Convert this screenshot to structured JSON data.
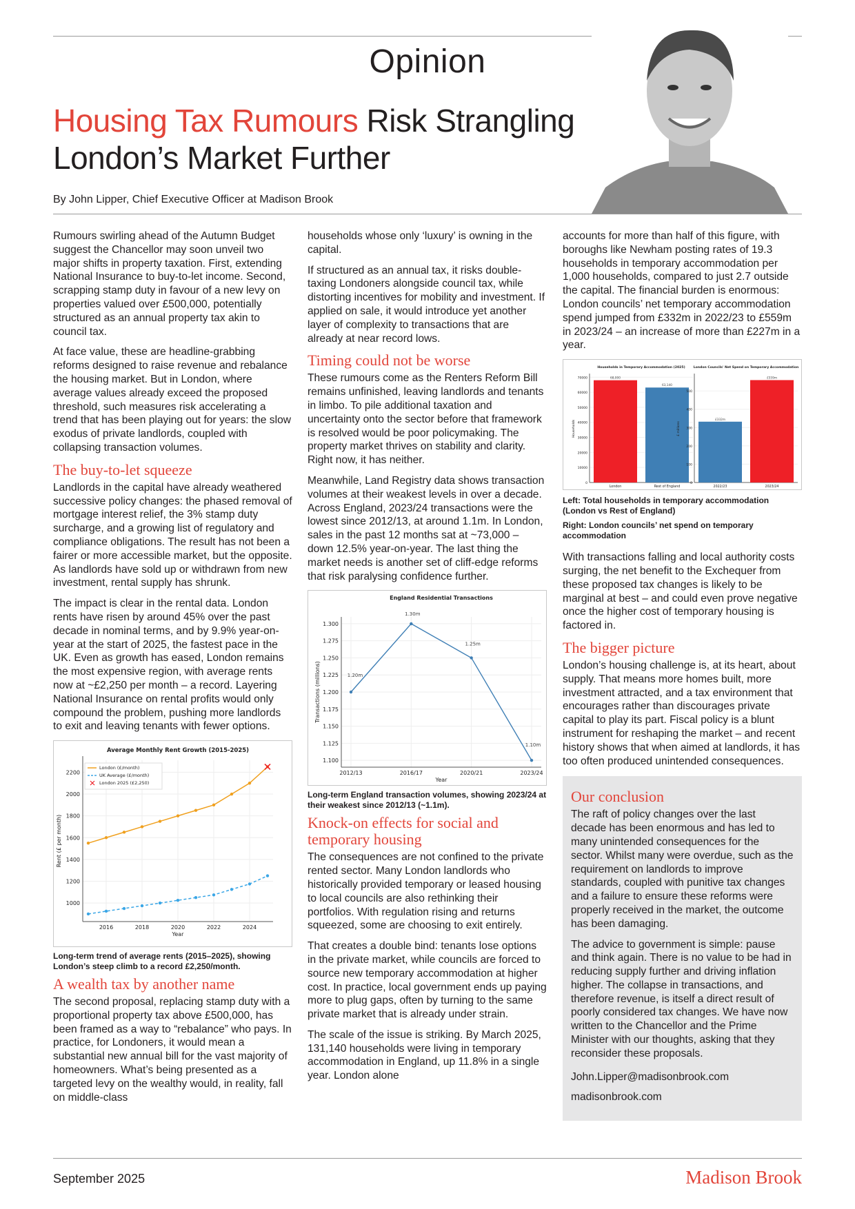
{
  "header": {
    "section": "Opinion",
    "headline_accent": "Housing Tax Rumours",
    "headline_rest": " Risk Strangling London’s Market Further",
    "byline": "By John Lipper, Chief Executive Officer at Madison Brook"
  },
  "col1": {
    "p1": "Rumours swirling ahead of the Autumn Budget suggest the Chancellor may soon unveil two major shifts in property taxation. First, extending National Insurance to buy-to-let income. Second, scrapping stamp duty in favour of a new levy on properties valued over £500,000, potentially structured as an annual property tax akin to council tax.",
    "p2": "At face value, these are headline-grabbing reforms designed to raise revenue and rebalance the housing market. But in London, where average values already exceed the proposed threshold, such measures risk accelerating a trend that has been playing out for years: the slow exodus of private landlords, coupled with collapsing transaction volumes.",
    "h1": "The buy-to-let squeeze",
    "p3": "Landlords in the capital have already weathered successive policy changes: the phased removal of mortgage interest relief, the 3% stamp duty surcharge, and a growing list of regulatory and compliance obligations. The result has not been a fairer or more accessible market, but the opposite. As landlords have sold up or withdrawn from new investment, rental supply has shrunk.",
    "p4": "The impact is clear in the rental data. London rents have risen by around 45% over the past decade in nominal terms, and by 9.9% year-on-year at the start of 2025, the fastest pace in the UK. Even as growth has eased, London remains the most expensive region, with average rents now at ~£2,250 per month – a record. Layering National Insurance on rental profits would only compound the problem, pushing more landlords to exit and leaving tenants with fewer options.",
    "caption": "Long-term trend of average rents (2015–2025), showing London’s steep climb to a record £2,250/month.",
    "h2": "A wealth tax by another name",
    "p5": "The second proposal, replacing stamp duty with a proportional property tax above £500,000, has been framed as a way to “rebalance” who pays. In practice, for Londoners, it would mean a substantial new annual bill for the vast majority of homeowners. What’s being presented as a targeted levy on the wealthy would, in reality, fall on middle-class"
  },
  "col2": {
    "p1": "households whose only ‘luxury’ is owning in the capital.",
    "p2": "If structured as an annual tax, it risks double-taxing Londoners alongside council tax, while distorting incentives for mobility and investment. If applied on sale, it would introduce yet another layer of complexity to transactions that are already at near record lows.",
    "h1": "Timing could not be worse",
    "p3": "These rumours come as the Renters Reform Bill remains unfinished, leaving landlords and tenants in limbo. To pile additional taxation and uncertainty onto the sector before that framework is resolved would be poor policymaking. The property market thrives on stability and clarity. Right now, it has neither.",
    "p4": "Meanwhile, Land Registry data shows transaction volumes at their weakest levels in over a decade. Across England, 2023/24 transactions were the lowest since 2012/13, at around 1.1m. In London, sales in the past 12 months sat at ~73,000 – down 12.5% year-on-year. The last thing the market needs is another set of cliff-edge reforms that risk paralysing confidence further.",
    "caption": "Long-term England transaction volumes, showing 2023/24 at their weakest since 2012/13 (~1.1m).",
    "h2": "Knock-on effects for social and temporary housing",
    "p5": "The consequences are not confined to the private rented sector. Many London landlords who historically provided temporary or leased housing to local councils are also rethinking their portfolios. With regulation rising and returns squeezed, some are choosing to exit entirely.",
    "p6": "That creates a double bind: tenants lose options in the private market, while councils are forced to source new temporary accommodation at higher cost. In practice, local government ends up paying more to plug gaps, often by turning to the same private market that is already under strain.",
    "p7": "The scale of the issue is striking. By March 2025, 131,140 households were living in temporary accommodation in England, up 11.8% in a single year. London alone"
  },
  "col3": {
    "p1": "accounts for more than half of this figure, with boroughs like Newham posting rates of 19.3 households in temporary accommodation per 1,000 households, compared to just 2.7 outside the capital. The financial burden is enormous: London councils’ net temporary accommodation spend jumped from £332m in 2022/23 to £559m in 2023/24 – an increase of more than £227m in a year.",
    "caption_left": "Left: Total households in temporary accommodation (London vs Rest of England)",
    "caption_right": "Right: London councils’ net spend on temporary accommodation",
    "p2": "With transactions falling and local authority costs surging, the net benefit to the Exchequer from these proposed tax changes is likely to be marginal at best – and could even prove negative once the higher cost of temporary housing is factored in.",
    "h1": "The bigger picture",
    "p3": "London’s housing challenge is, at its heart, about supply. That means more homes built, more investment attracted, and a tax environment that encourages rather than discourages private capital to play its part. Fiscal policy is a blunt instrument for reshaping the market – and recent history shows that when aimed at landlords, it has too often produced unintended consequences."
  },
  "conclusion": {
    "title": "Our conclusion",
    "p1": "The raft of policy changes over the last decade has been enormous and has led to many unintended consequences for the sector. Whilst many were overdue, such as the requirement on landlords to improve standards, coupled with punitive tax changes and a failure to ensure these reforms were properly received in the market, the outcome has been damaging.",
    "p2": "The advice to government is simple: pause and think again. There is no value to be had in reducing supply further and driving inflation higher. The collapse in transactions, and therefore revenue, is itself a direct result of poorly considered tax changes. We have now written to the Chancellor and the Prime Minister with our thoughts, asking that they reconsider these proposals.",
    "email": "John.Lipper@madisonbrook.com",
    "website": "madisonbrook.com"
  },
  "footer": {
    "date": "September 2025",
    "brand": "Madison Brook"
  },
  "colors": {
    "accent": "#e2453a",
    "london_line": "#f0a01e",
    "uk_line": "#3aa6e6",
    "blue": "#3f7fb5",
    "red_bar": "#ee2027"
  },
  "chart_data": [
    {
      "type": "line",
      "title": "Average Monthly Rent Growth (2015-2025)",
      "xlabel": "Year",
      "ylabel": "Rent (£ per month)",
      "x": [
        2015,
        2016,
        2017,
        2018,
        2019,
        2020,
        2021,
        2022,
        2023,
        2024,
        2025
      ],
      "xticks": [
        2016,
        2018,
        2020,
        2022,
        2024
      ],
      "yticks": [
        1000,
        1200,
        1400,
        1600,
        1800,
        2000,
        2200
      ],
      "ylim": [
        830,
        2310
      ],
      "grid": true,
      "legend_position": "top-left",
      "series": [
        {
          "name": "London (£/month)",
          "values": [
            1550,
            1600,
            1650,
            1700,
            1750,
            1800,
            1850,
            1900,
            2000,
            2100,
            2250
          ],
          "color": "#f0a01e",
          "style": "solid"
        },
        {
          "name": "UK Average (£/month)",
          "values": [
            900,
            925,
            950,
            975,
            1000,
            1025,
            1050,
            1075,
            1125,
            1175,
            1250
          ],
          "color": "#3aa6e6",
          "style": "dashed"
        }
      ],
      "highlight": {
        "name": "London 2025 (£2,250)",
        "x": 2025,
        "y": 2250,
        "color": "#ee2027",
        "marker": "x"
      }
    },
    {
      "type": "line",
      "title": "England Residential Transactions",
      "xlabel": "Year",
      "ylabel": "Transactions (millions)",
      "categories": [
        "2012/13",
        "2016/17",
        "2020/21",
        "2023/24"
      ],
      "values": [
        1.2,
        1.3,
        1.25,
        1.1
      ],
      "data_labels": [
        "1.20m",
        "1.30m",
        "1.25m",
        "1.10m"
      ],
      "yticks": [
        "1.100",
        "1.125",
        "1.150",
        "1.175",
        "1.200",
        "1.225",
        "1.250",
        "1.275",
        "1.300"
      ],
      "ylim": [
        1.09,
        1.31
      ],
      "grid": true,
      "color": "#3f7fb5"
    },
    {
      "type": "bar",
      "title": "Households in Temporary Accommodation (2025)",
      "ylabel": "Households",
      "categories": [
        "London",
        "Rest of England"
      ],
      "values": [
        68000,
        63140
      ],
      "data_labels": [
        "68,000",
        "63,140"
      ],
      "colors": [
        "#ee2027",
        "#3f7fb5"
      ],
      "yticks": [
        "0",
        "10000",
        "20000",
        "30000",
        "40000",
        "50000",
        "60000",
        "70000"
      ],
      "ylim": [
        0,
        71500
      ],
      "grid": true
    },
    {
      "type": "bar",
      "title": "London Councils' Net Spend on Temporary Accommodation",
      "ylabel": "£ millions",
      "categories": [
        "2022/23",
        "2023/24"
      ],
      "values": [
        332,
        559
      ],
      "data_labels": [
        "£332m",
        "£559m"
      ],
      "colors": [
        "#3f7fb5",
        "#ee2027"
      ],
      "yticks": [
        "0",
        "100",
        "200",
        "300",
        "400",
        "500"
      ],
      "ylim": [
        0,
        587
      ],
      "grid": true
    }
  ]
}
